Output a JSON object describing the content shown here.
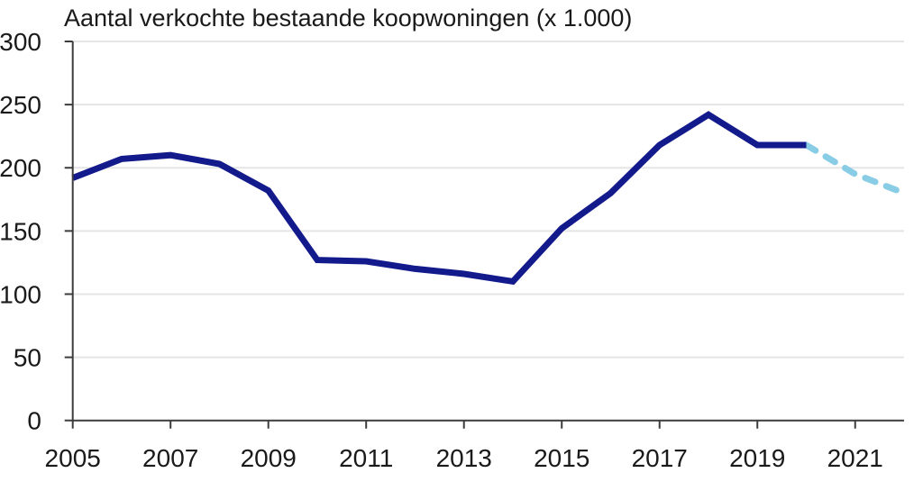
{
  "colors": {
    "background": "#ffffff",
    "grid": "#e5e5e5",
    "axis": "#3c3c3c",
    "text": "#1a1a1a",
    "line_solid": "#121a8c",
    "line_dashed": "#89cce5"
  },
  "chart_data": {
    "type": "line",
    "title": "Aantal verkochte bestaande koopwoningen (x 1.000)",
    "xlabel": "",
    "ylabel": "",
    "xlim": [
      2005,
      2022
    ],
    "ylim": [
      0,
      300
    ],
    "x_ticks": [
      2005,
      2007,
      2009,
      2011,
      2013,
      2015,
      2017,
      2019,
      2021
    ],
    "y_ticks": [
      0,
      50,
      100,
      150,
      200,
      250,
      300
    ],
    "grid": true,
    "legend": false,
    "series": [
      {
        "name": "solid",
        "style": "solid",
        "color": "#121a8c",
        "x": [
          2005,
          2006,
          2007,
          2008,
          2009,
          2010,
          2011,
          2012,
          2013,
          2014,
          2015,
          2016,
          2017,
          2018,
          2019,
          2020
        ],
        "values": [
          192,
          207,
          210,
          203,
          182,
          127,
          126,
          120,
          116,
          110,
          152,
          180,
          218,
          242,
          218,
          218
        ]
      },
      {
        "name": "dashed",
        "style": "dashed",
        "color": "#89cce5",
        "x": [
          2020,
          2021,
          2022
        ],
        "values": [
          218,
          195,
          180
        ]
      }
    ]
  }
}
